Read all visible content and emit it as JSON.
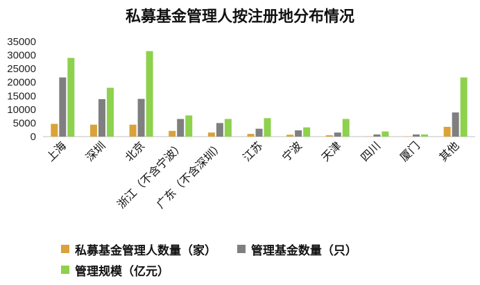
{
  "chart_data": {
    "type": "bar",
    "title": "私募基金管理人按注册地分布情况",
    "categories": [
      "上海",
      "深圳",
      "北京",
      "浙江（不含宁波）",
      "广东（不含深圳）",
      "江苏",
      "宁波",
      "天津",
      "四川",
      "厦门",
      "其他"
    ],
    "series": [
      {
        "name": "私募基金管理人数量（家）",
        "color": "#D9A23A",
        "values": [
          4700,
          4400,
          4400,
          2100,
          1500,
          1000,
          700,
          500,
          100,
          100,
          3600
        ]
      },
      {
        "name": "管理基金数量（只）",
        "color": "#7F7F7F",
        "values": [
          21800,
          13800,
          13900,
          6500,
          5000,
          2900,
          2300,
          1500,
          800,
          800,
          8900
        ]
      },
      {
        "name": "管理规模（亿元）",
        "color": "#8ED14D",
        "values": [
          29000,
          18000,
          31500,
          7800,
          6500,
          6800,
          3400,
          6500,
          1900,
          800,
          21800
        ]
      }
    ],
    "ylim": [
      0,
      35000
    ],
    "yticks": [
      "0",
      "5000",
      "10000",
      "15000",
      "20000",
      "25000",
      "30000",
      "35000"
    ],
    "grid": false,
    "legend_position": "bottom"
  }
}
